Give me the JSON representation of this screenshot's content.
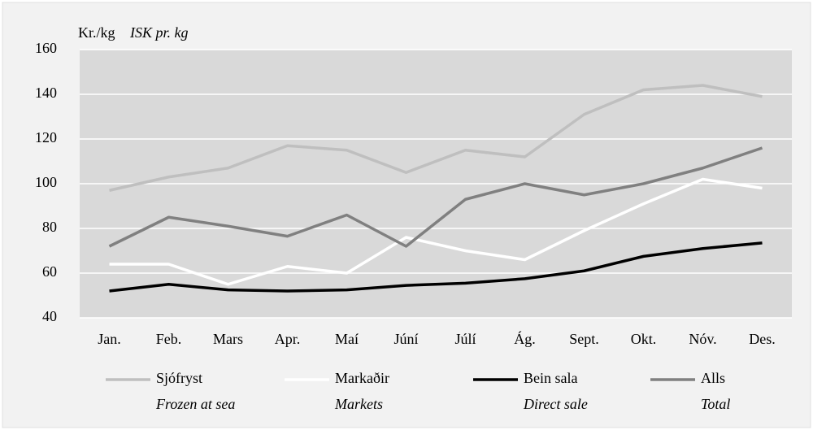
{
  "chart_data": {
    "type": "line",
    "y_axis_label": "Kr./kg",
    "y_axis_label_en": "ISK pr. kg",
    "categories": [
      "Jan.",
      "Feb.",
      "Mars",
      "Apr.",
      "Maí",
      "Júní",
      "Júlí",
      "Ág.",
      "Sept.",
      "Okt.",
      "Nóv.",
      "Des."
    ],
    "series": [
      {
        "name": "Sjófryst",
        "subtitle": "Frozen at sea",
        "color": "#bfbfbf",
        "values": [
          97,
          103,
          107,
          117,
          115,
          105,
          115,
          112,
          131,
          142,
          144,
          139
        ]
      },
      {
        "name": "Markaðir",
        "subtitle": "Markets",
        "color": "#ffffff",
        "values": [
          64,
          64,
          55,
          63,
          60,
          76,
          70,
          66,
          79,
          91,
          102,
          98
        ]
      },
      {
        "name": "Bein sala",
        "subtitle": "Direct sale",
        "color": "#000000",
        "values": [
          52,
          55,
          52.5,
          52,
          52.5,
          54.5,
          55.5,
          57.5,
          61,
          67.5,
          71,
          73.5
        ]
      },
      {
        "name": "Alls",
        "subtitle": "Total",
        "color": "#808080",
        "values": [
          72,
          85,
          81,
          76.5,
          86,
          72,
          93,
          100,
          95,
          100,
          107,
          116
        ]
      }
    ],
    "ylim": [
      40,
      160
    ],
    "yticks": [
      40,
      60,
      80,
      100,
      120,
      140,
      160
    ],
    "grid": true
  }
}
